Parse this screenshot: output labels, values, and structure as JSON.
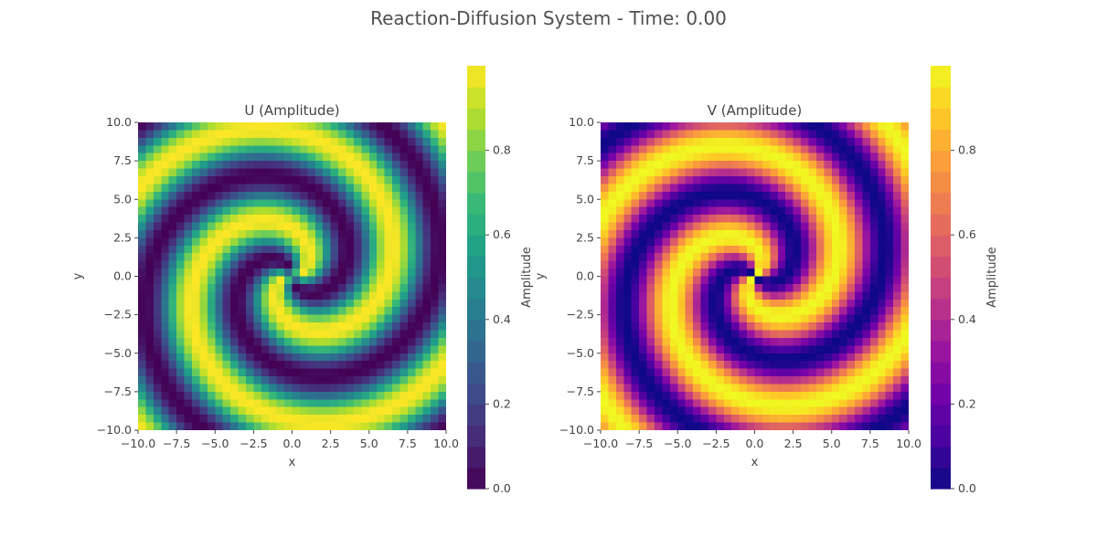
{
  "figure": {
    "title": "Reaction-Diffusion System - Time: 0.00"
  },
  "chart_data": [
    {
      "type": "heatmap",
      "title": "U (Amplitude)",
      "xlabel": "x",
      "ylabel": "y",
      "xlim": [
        -10,
        10
      ],
      "ylim": [
        -10,
        10
      ],
      "x_ticks": [
        -10,
        -7.5,
        -5,
        -2.5,
        0,
        2.5,
        5,
        7.5,
        10
      ],
      "y_ticks": [
        -10,
        -7.5,
        -5,
        -2.5,
        0,
        2.5,
        5,
        7.5,
        10
      ],
      "x_tick_labels": [
        "−10.0",
        "−7.5",
        "−5.0",
        "−2.5",
        "0.0",
        "2.5",
        "5.0",
        "7.5",
        "10.0"
      ],
      "y_tick_labels": [
        "−10.0",
        "−7.5",
        "−5.0",
        "−2.5",
        "0.0",
        "2.5",
        "5.0",
        "7.5",
        "10.0"
      ],
      "grid": false,
      "colormap": "viridis",
      "value_range": [
        0,
        1
      ],
      "pattern": "two-armed spiral wave centered at origin, values range 0 to 1",
      "colorbar": {
        "label": "Amplitude",
        "ticks": [
          0,
          0.2,
          0.4,
          0.6,
          0.8
        ],
        "tick_labels": [
          "0.0",
          "0.2",
          "0.4",
          "0.6",
          "0.8"
        ],
        "range": [
          0,
          1
        ]
      }
    },
    {
      "type": "heatmap",
      "title": "V (Amplitude)",
      "xlabel": "x",
      "ylabel": "y",
      "xlim": [
        -10,
        10
      ],
      "ylim": [
        -10,
        10
      ],
      "x_ticks": [
        -10,
        -7.5,
        -5,
        -2.5,
        0,
        2.5,
        5,
        7.5,
        10
      ],
      "y_ticks": [
        -10,
        -7.5,
        -5,
        -2.5,
        0,
        2.5,
        5,
        7.5,
        10
      ],
      "x_tick_labels": [
        "−10.0",
        "−7.5",
        "−5.0",
        "−2.5",
        "0.0",
        "2.5",
        "5.0",
        "7.5",
        "10.0"
      ],
      "y_tick_labels": [
        "−10.0",
        "−7.5",
        "−5.0",
        "−2.5",
        "0.0",
        "2.5",
        "5.0",
        "7.5",
        "10.0"
      ],
      "grid": false,
      "colormap": "plasma",
      "value_range": [
        0,
        1
      ],
      "pattern": "two-armed spiral wave centered at origin, values range 0 to 1",
      "colorbar": {
        "label": "Amplitude",
        "ticks": [
          0,
          0.2,
          0.4,
          0.6,
          0.8
        ],
        "tick_labels": [
          "0.0",
          "0.2",
          "0.4",
          "0.6",
          "0.8"
        ],
        "range": [
          0,
          1
        ]
      }
    }
  ]
}
